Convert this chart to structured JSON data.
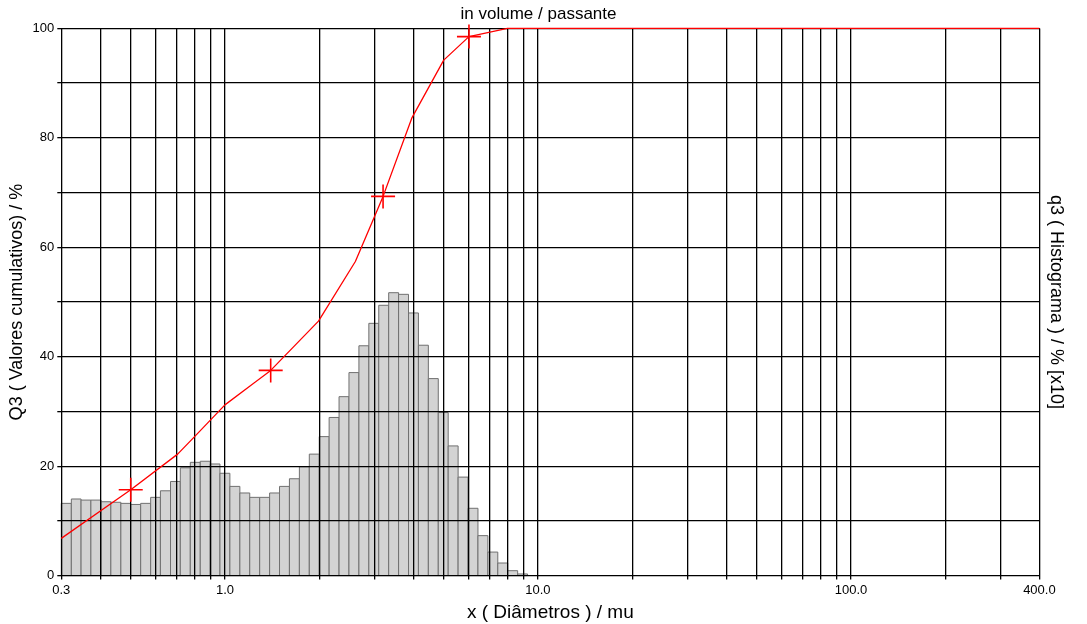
{
  "chart_data": {
    "type": "histogram",
    "title": "in volume / passante",
    "xlabel": "x ( Diâmetros ) / mu",
    "ylabel": "Q3 ( Valores cumulativos) / %",
    "y2label": "q3 ( Histograma ) / % [x10]",
    "log": "x",
    "grid": true,
    "legend": false,
    "xlim": [
      0.3,
      400
    ],
    "xticks": [
      {
        "value": 0.3,
        "label": "0.3"
      },
      {
        "value": 0.4,
        "label": null
      },
      {
        "value": 0.5,
        "label": null
      },
      {
        "value": 0.6,
        "label": null
      },
      {
        "value": 0.7,
        "label": null
      },
      {
        "value": 0.8,
        "label": null
      },
      {
        "value": 0.9,
        "label": null
      },
      {
        "value": 1,
        "label": "1.0"
      },
      {
        "value": 2,
        "label": null
      },
      {
        "value": 3,
        "label": null
      },
      {
        "value": 4,
        "label": null
      },
      {
        "value": 5,
        "label": null
      },
      {
        "value": 6,
        "label": null
      },
      {
        "value": 7,
        "label": null
      },
      {
        "value": 8,
        "label": null
      },
      {
        "value": 9,
        "label": null
      },
      {
        "value": 10,
        "label": "10.0"
      },
      {
        "value": 20,
        "label": null
      },
      {
        "value": 30,
        "label": null
      },
      {
        "value": 40,
        "label": null
      },
      {
        "value": 50,
        "label": null
      },
      {
        "value": 60,
        "label": null
      },
      {
        "value": 70,
        "label": null
      },
      {
        "value": 80,
        "label": null
      },
      {
        "value": 90,
        "label": null
      },
      {
        "value": 100,
        "label": "100.0"
      },
      {
        "value": 200,
        "label": null
      },
      {
        "value": 300,
        "label": null
      },
      {
        "value": 400,
        "label": "400.0"
      }
    ],
    "ylim": [
      0,
      100
    ],
    "yticks": [
      0,
      {
        "value": 10,
        "label": null
      },
      20,
      {
        "value": 30,
        "label": null
      },
      40,
      {
        "value": 50,
        "label": null
      },
      60,
      {
        "value": 70,
        "label": null
      },
      80,
      {
        "value": 90,
        "label": null
      },
      100
    ],
    "series": [
      {
        "color": "#d3d3d3",
        "bins": [
          0.3,
          0.323,
          0.347,
          0.373,
          0.402,
          0.432,
          0.465,
          0.5,
          0.538,
          0.579,
          0.622,
          0.67,
          0.72,
          0.775,
          0.834,
          0.897,
          0.964,
          1.037,
          1.116,
          1.2,
          1.291,
          1.389,
          1.494,
          1.607,
          1.729,
          1.86,
          2.001,
          2.152,
          2.315,
          2.49,
          2.679,
          2.882,
          3.1,
          3.335,
          3.587,
          3.859,
          4.151,
          4.465,
          4.803,
          5.167,
          5.558,
          5.979,
          6.432,
          6.919,
          7.442,
          8.006,
          8.612,
          9.264
        ],
        "values": [
          13.2,
          14.0,
          13.8,
          13.8,
          13.5,
          13.4,
          13.2,
          13.0,
          13.2,
          14.3,
          15.5,
          17.2,
          19.7,
          20.7,
          20.9,
          20.4,
          18.7,
          16.3,
          15.1,
          14.3,
          14.3,
          15.1,
          16.3,
          17.7,
          19.9,
          22.2,
          25.4,
          28.9,
          32.7,
          37.1,
          42.0,
          46.1,
          49.4,
          51.7,
          51.4,
          48.0,
          42.1,
          36.0,
          29.8,
          23.7,
          18.0,
          12.3,
          7.3,
          4.3,
          2.3,
          0.9,
          0.3
        ]
      },
      {
        "type": "line",
        "color": "#ff0000",
        "marker": "none",
        "x": [
          0.3,
          0.5,
          0.706,
          0.797,
          1.0,
          1.4,
          1.99,
          2.61,
          3.2,
          3.96,
          5.0,
          6.02,
          7.99,
          400
        ],
        "values": [
          6.8,
          15.7,
          22.2,
          25.3,
          31.2,
          37.5,
          46.5,
          57.4,
          69.3,
          83.7,
          94.2,
          98.5,
          100,
          100
        ]
      },
      {
        "type": "scatter",
        "color": "#ff0000",
        "marker": "cross",
        "x": [
          0.5,
          1.4,
          3.2,
          6.02
        ],
        "values": [
          15.7,
          37.5,
          69.3,
          98.5
        ]
      }
    ]
  }
}
